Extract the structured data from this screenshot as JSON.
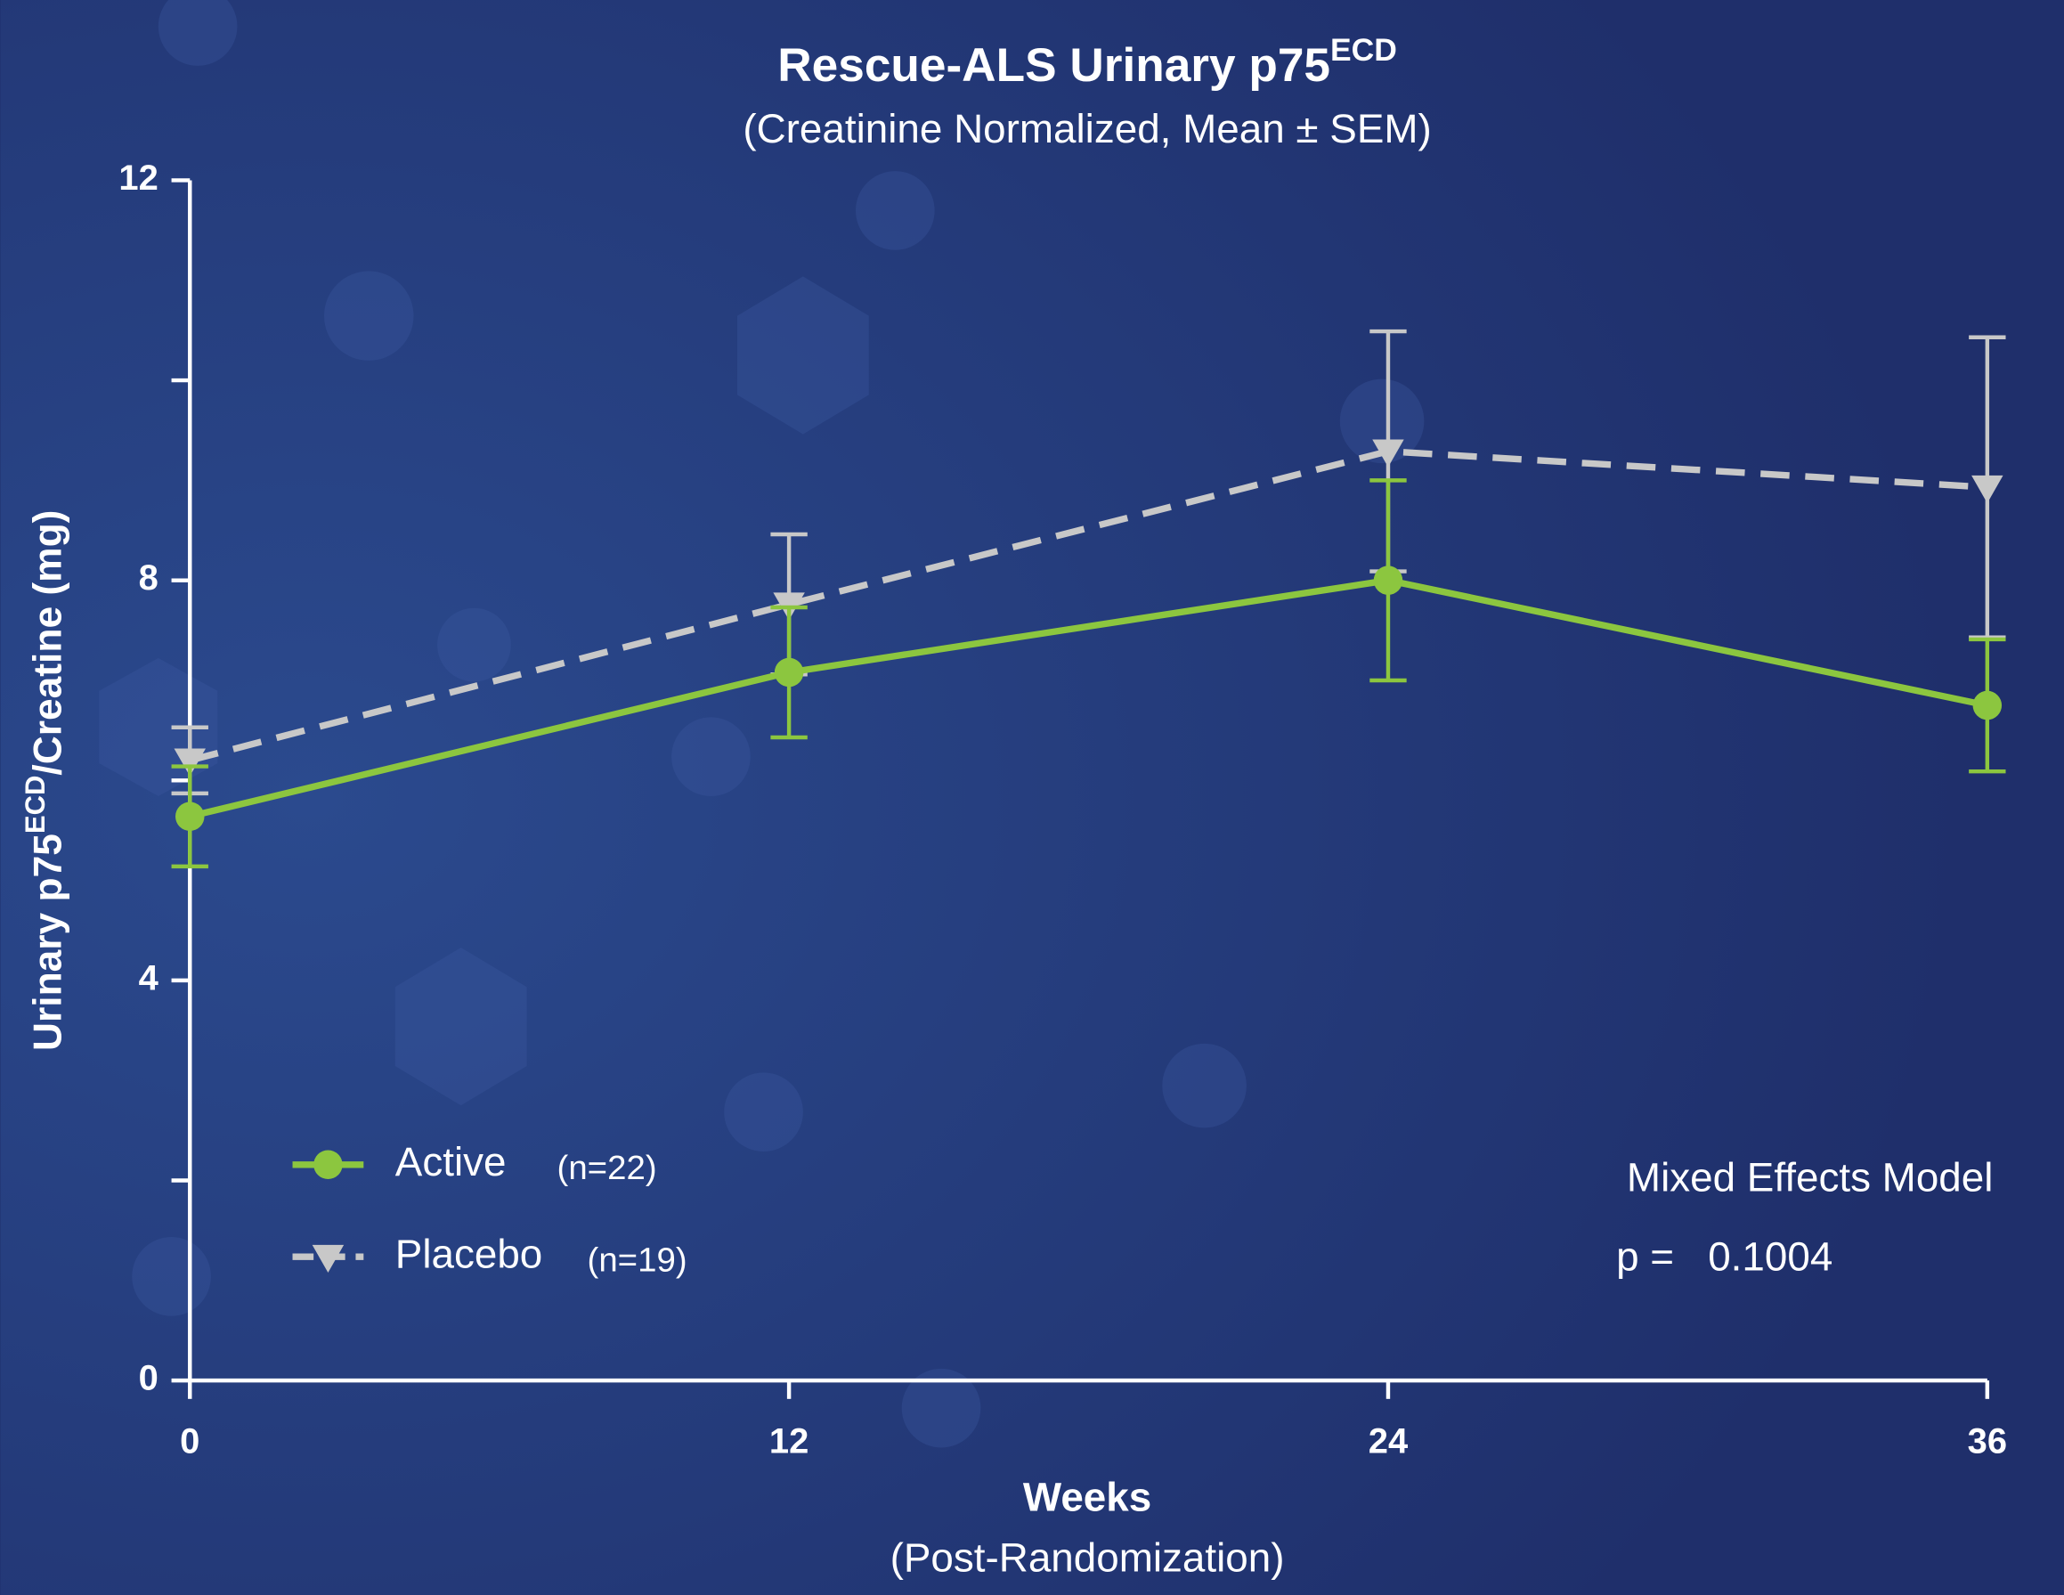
{
  "chart_data": {
    "type": "line",
    "title": "Rescue-ALS Urinary p75",
    "title_superscript": "ECD",
    "subtitle": "(Creatinine Normalized, Mean ± SEM)",
    "ylabel": [
      "Urinary p75",
      "ECD",
      "/Creatine (mg)"
    ],
    "xlabel": "Weeks",
    "xlabel_sub": "(Post-Randomization)",
    "x": [
      0,
      12,
      24,
      36
    ],
    "xlim": [
      0,
      36
    ],
    "xticks": [
      0,
      12,
      24,
      36
    ],
    "ylim": [
      0,
      12
    ],
    "yticks": [
      0,
      4,
      8,
      12
    ],
    "yminor_ticks": [
      2,
      6,
      10
    ],
    "series": [
      {
        "name": "Active",
        "n_label": "(n=22)",
        "color": "#8cc63f",
        "marker": "circle",
        "dashed": false,
        "values": [
          5.64,
          7.08,
          8.0,
          6.75
        ],
        "errors": [
          0.5,
          0.65,
          1.0,
          0.66
        ]
      },
      {
        "name": "Placebo",
        "n_label": "(n=19)",
        "color": "#c8c8c8",
        "marker": "triangle-down",
        "dashed": true,
        "values": [
          6.2,
          7.76,
          9.29,
          8.93
        ],
        "errors": [
          0.33,
          0.7,
          1.2,
          1.5
        ]
      }
    ],
    "annotations": [
      "Mixed Effects Model",
      "p =   0.1004"
    ]
  }
}
